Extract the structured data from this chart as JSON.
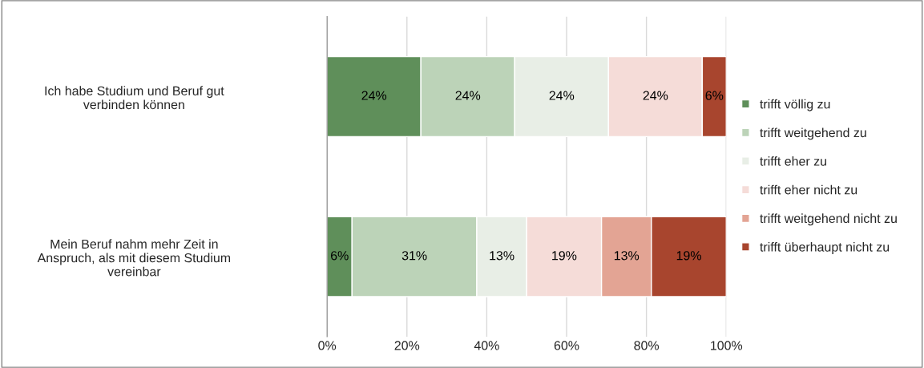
{
  "chart_data": {
    "type": "bar",
    "orientation": "horizontal",
    "stacked": true,
    "categories": [
      "Ich habe Studium und Beruf gut\nverbinden können",
      "Mein Beruf nahm mehr Zeit in\nAnspruch, als mit diesem Studium\nvereinbar"
    ],
    "series": [
      {
        "name": "trifft völlig zu",
        "color": "#5f8f5a",
        "values": [
          23.5,
          6.25
        ],
        "value_labels": [
          "24%",
          "6%"
        ]
      },
      {
        "name": "trifft weitgehend zu",
        "color": "#bcd3b8",
        "values": [
          23.5,
          31.25
        ],
        "value_labels": [
          "24%",
          "31%"
        ]
      },
      {
        "name": "trifft eher zu",
        "color": "#e8eee6",
        "values": [
          23.5,
          12.5
        ],
        "value_labels": [
          "24%",
          "13%"
        ]
      },
      {
        "name": "trifft eher nicht zu",
        "color": "#f5dcd8",
        "values": [
          23.5,
          18.75
        ],
        "value_labels": [
          "24%",
          "19%"
        ]
      },
      {
        "name": "trifft weitgehend nicht zu",
        "color": "#e3a494",
        "values": [
          0,
          12.5
        ],
        "value_labels": [
          null,
          "13%"
        ]
      },
      {
        "name": "trifft überhaupt nicht zu",
        "color": "#a8452e",
        "values": [
          6,
          18.75
        ],
        "value_labels": [
          "6%",
          "19%"
        ]
      }
    ],
    "xlim": [
      0,
      100
    ],
    "xticks": [
      {
        "value": 0,
        "label": "0%"
      },
      {
        "value": 20,
        "label": "20%"
      },
      {
        "value": 40,
        "label": "40%"
      },
      {
        "value": 60,
        "label": "60%"
      },
      {
        "value": 80,
        "label": "80%"
      },
      {
        "value": 100,
        "label": "100%"
      }
    ],
    "grid": "x",
    "legend": "right"
  }
}
